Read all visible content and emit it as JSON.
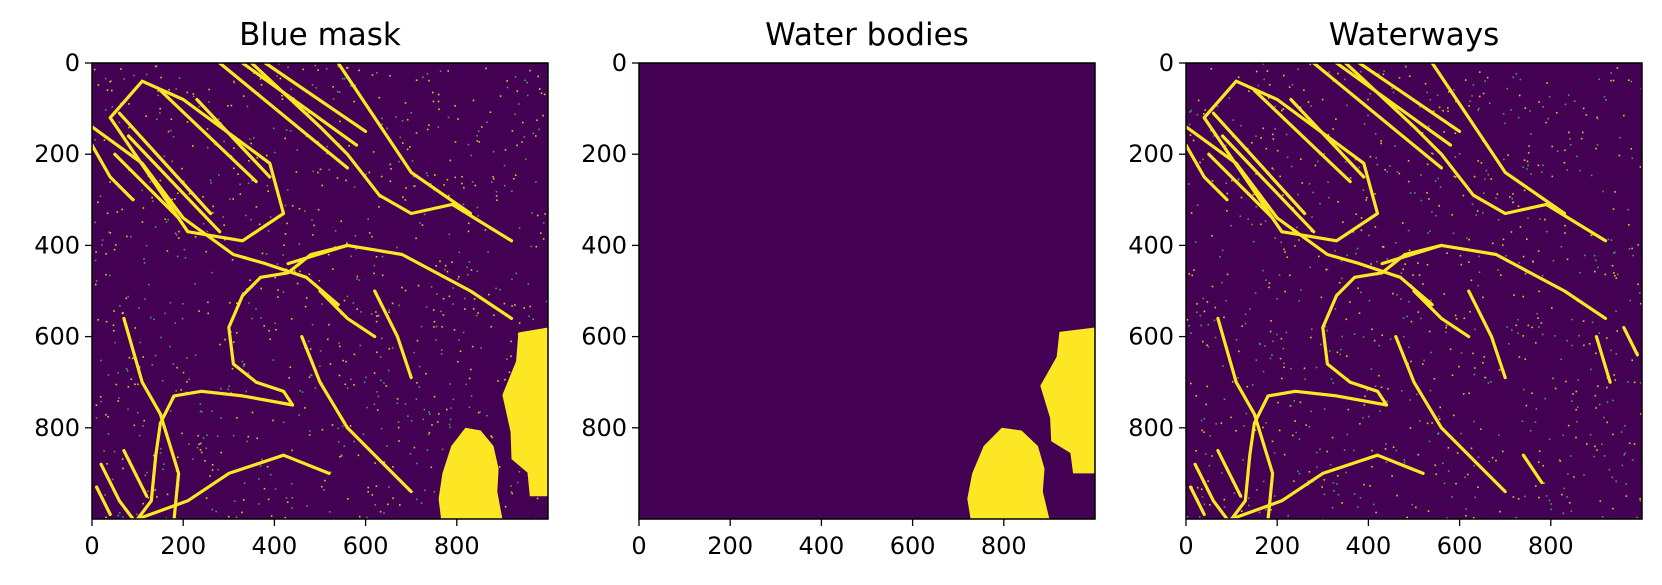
{
  "colors": {
    "background": "#440154",
    "mask": "#fde725",
    "speckle": "#3fbc73",
    "frame": "#000000"
  },
  "chart_data": [
    {
      "type": "heatmap",
      "title": "Blue mask",
      "xlim": [
        0,
        1000
      ],
      "ylim": [
        1000,
        0
      ],
      "xticks": [
        0,
        200,
        400,
        600,
        800
      ],
      "yticks": [
        0,
        200,
        400,
        600,
        800
      ],
      "xtick_labels": [
        "0",
        "200",
        "400",
        "600",
        "800"
      ],
      "ytick_labels": [
        "0",
        "200",
        "400",
        "600",
        "800"
      ],
      "grid": false,
      "colormap": "viridis",
      "value_range": [
        0,
        1
      ],
      "lines": [
        [
          [
            110,
            40
          ],
          [
            40,
            120
          ],
          [
            210,
            370
          ],
          [
            330,
            390
          ],
          [
            420,
            330
          ],
          [
            390,
            220
          ],
          [
            200,
            80
          ],
          [
            110,
            40
          ]
        ],
        [
          [
            60,
            110
          ],
          [
            260,
            330
          ]
        ],
        [
          [
            80,
            160
          ],
          [
            280,
            370
          ]
        ],
        [
          [
            50,
            200
          ],
          [
            190,
            340
          ]
        ],
        [
          [
            150,
            60
          ],
          [
            360,
            260
          ]
        ],
        [
          [
            230,
            80
          ],
          [
            390,
            250
          ]
        ],
        [
          [
            350,
            0
          ],
          [
            500,
            140
          ],
          [
            560,
            200
          ],
          [
            630,
            290
          ],
          [
            700,
            330
          ],
          [
            790,
            310
          ],
          [
            920,
            390
          ]
        ],
        [
          [
            280,
            0
          ],
          [
            560,
            230
          ]
        ],
        [
          [
            330,
            0
          ],
          [
            580,
            180
          ]
        ],
        [
          [
            380,
            0
          ],
          [
            600,
            150
          ]
        ],
        [
          [
            0,
            140
          ],
          [
            110,
            220
          ],
          [
            200,
            340
          ],
          [
            310,
            420
          ],
          [
            380,
            440
          ],
          [
            470,
            470
          ],
          [
            540,
            530
          ]
        ],
        [
          [
            0,
            180
          ],
          [
            40,
            250
          ],
          [
            90,
            300
          ]
        ],
        [
          [
            540,
            0
          ],
          [
            620,
            120
          ],
          [
            700,
            240
          ],
          [
            830,
            330
          ]
        ],
        [
          [
            430,
            440
          ],
          [
            560,
            400
          ],
          [
            680,
            420
          ],
          [
            830,
            500
          ],
          [
            920,
            560
          ]
        ],
        [
          [
            560,
            400
          ],
          [
            480,
            420
          ],
          [
            430,
            460
          ],
          [
            370,
            470
          ],
          [
            330,
            510
          ],
          [
            300,
            580
          ],
          [
            310,
            660
          ],
          [
            360,
            700
          ],
          [
            420,
            720
          ],
          [
            440,
            750
          ],
          [
            330,
            730
          ],
          [
            240,
            720
          ],
          [
            180,
            730
          ],
          [
            150,
            790
          ],
          [
            140,
            860
          ],
          [
            130,
            960
          ],
          [
            100,
            1000
          ]
        ],
        [
          [
            70,
            560
          ],
          [
            110,
            700
          ],
          [
            150,
            770
          ],
          [
            190,
            900
          ],
          [
            180,
            1000
          ]
        ],
        [
          [
            100,
            1000
          ],
          [
            210,
            960
          ],
          [
            300,
            900
          ],
          [
            420,
            860
          ],
          [
            520,
            900
          ]
        ],
        [
          [
            460,
            600
          ],
          [
            500,
            700
          ],
          [
            560,
            800
          ],
          [
            640,
            880
          ],
          [
            700,
            940
          ]
        ],
        [
          [
            620,
            500
          ],
          [
            670,
            600
          ],
          [
            700,
            690
          ]
        ],
        [
          [
            20,
            880
          ],
          [
            60,
            960
          ],
          [
            90,
            1000
          ]
        ],
        [
          [
            10,
            930
          ],
          [
            40,
            990
          ]
        ],
        [
          [
            70,
            850
          ],
          [
            120,
            950
          ]
        ],
        [
          [
            500,
            500
          ],
          [
            560,
            560
          ],
          [
            620,
            600
          ]
        ]
      ],
      "blobs": [
        {
          "shape": "water-body-lower",
          "x": [
            760,
            900
          ],
          "y": [
            800,
            1000
          ],
          "value": 1
        },
        {
          "shape": "water-body-right-edge",
          "x": [
            900,
            1000
          ],
          "y": [
            580,
            950
          ],
          "value": 1
        }
      ]
    },
    {
      "type": "heatmap",
      "title": "Water bodies",
      "xlim": [
        0,
        1000
      ],
      "ylim": [
        1000,
        0
      ],
      "xticks": [
        0,
        200,
        400,
        600,
        800
      ],
      "yticks": [
        0,
        200,
        400,
        600,
        800
      ],
      "xtick_labels": [
        "0",
        "200",
        "400",
        "600",
        "800"
      ],
      "ytick_labels": [
        "0",
        "200",
        "400",
        "600",
        "800"
      ],
      "grid": false,
      "colormap": "viridis",
      "value_range": [
        0,
        1
      ],
      "lines": [],
      "blobs": [
        {
          "shape": "water-body-lower",
          "x": [
            720,
            900
          ],
          "y": [
            800,
            1000
          ],
          "value": 1
        },
        {
          "shape": "water-body-right-edge",
          "x": [
            880,
            1000
          ],
          "y": [
            580,
            900
          ],
          "value": 1
        }
      ]
    },
    {
      "type": "heatmap",
      "title": "Waterways",
      "xlim": [
        0,
        1000
      ],
      "ylim": [
        1000,
        0
      ],
      "xticks": [
        0,
        200,
        400,
        600,
        800
      ],
      "yticks": [
        0,
        200,
        400,
        600,
        800
      ],
      "xtick_labels": [
        "0",
        "200",
        "400",
        "600",
        "800"
      ],
      "ytick_labels": [
        "0",
        "200",
        "400",
        "600",
        "800"
      ],
      "grid": false,
      "colormap": "viridis",
      "value_range": [
        0,
        1
      ],
      "lines": [
        [
          [
            110,
            40
          ],
          [
            40,
            120
          ],
          [
            210,
            370
          ],
          [
            330,
            390
          ],
          [
            420,
            330
          ],
          [
            390,
            220
          ],
          [
            200,
            80
          ],
          [
            110,
            40
          ]
        ],
        [
          [
            60,
            110
          ],
          [
            260,
            330
          ]
        ],
        [
          [
            80,
            160
          ],
          [
            280,
            370
          ]
        ],
        [
          [
            50,
            200
          ],
          [
            190,
            340
          ]
        ],
        [
          [
            150,
            60
          ],
          [
            360,
            260
          ]
        ],
        [
          [
            230,
            80
          ],
          [
            390,
            250
          ]
        ],
        [
          [
            350,
            0
          ],
          [
            500,
            140
          ],
          [
            560,
            200
          ],
          [
            630,
            290
          ],
          [
            700,
            330
          ],
          [
            790,
            310
          ],
          [
            920,
            390
          ]
        ],
        [
          [
            280,
            0
          ],
          [
            560,
            230
          ]
        ],
        [
          [
            330,
            0
          ],
          [
            580,
            180
          ]
        ],
        [
          [
            380,
            0
          ],
          [
            600,
            150
          ]
        ],
        [
          [
            0,
            140
          ],
          [
            110,
            220
          ],
          [
            200,
            340
          ],
          [
            310,
            420
          ],
          [
            380,
            440
          ],
          [
            470,
            470
          ],
          [
            540,
            530
          ]
        ],
        [
          [
            0,
            180
          ],
          [
            40,
            250
          ],
          [
            90,
            300
          ]
        ],
        [
          [
            540,
            0
          ],
          [
            620,
            120
          ],
          [
            700,
            240
          ],
          [
            830,
            330
          ]
        ],
        [
          [
            430,
            440
          ],
          [
            560,
            400
          ],
          [
            680,
            420
          ],
          [
            830,
            500
          ],
          [
            920,
            560
          ]
        ],
        [
          [
            560,
            400
          ],
          [
            480,
            420
          ],
          [
            430,
            460
          ],
          [
            370,
            470
          ],
          [
            330,
            510
          ],
          [
            300,
            580
          ],
          [
            310,
            660
          ],
          [
            360,
            700
          ],
          [
            420,
            720
          ],
          [
            440,
            750
          ],
          [
            330,
            730
          ],
          [
            240,
            720
          ],
          [
            180,
            730
          ],
          [
            150,
            790
          ],
          [
            140,
            860
          ],
          [
            130,
            960
          ],
          [
            100,
            1000
          ]
        ],
        [
          [
            70,
            560
          ],
          [
            110,
            700
          ],
          [
            150,
            770
          ],
          [
            190,
            900
          ],
          [
            180,
            1000
          ]
        ],
        [
          [
            100,
            1000
          ],
          [
            210,
            960
          ],
          [
            300,
            900
          ],
          [
            420,
            860
          ],
          [
            520,
            900
          ]
        ],
        [
          [
            460,
            600
          ],
          [
            500,
            700
          ],
          [
            560,
            800
          ],
          [
            640,
            880
          ],
          [
            700,
            940
          ]
        ],
        [
          [
            620,
            500
          ],
          [
            670,
            600
          ],
          [
            700,
            690
          ]
        ],
        [
          [
            20,
            880
          ],
          [
            60,
            960
          ],
          [
            90,
            1000
          ]
        ],
        [
          [
            10,
            930
          ],
          [
            40,
            990
          ]
        ],
        [
          [
            70,
            850
          ],
          [
            120,
            950
          ]
        ],
        [
          [
            500,
            500
          ],
          [
            560,
            560
          ],
          [
            620,
            600
          ]
        ],
        [
          [
            740,
            860
          ],
          [
            780,
            920
          ]
        ],
        [
          [
            900,
            600
          ],
          [
            930,
            700
          ]
        ],
        [
          [
            960,
            580
          ],
          [
            990,
            640
          ]
        ]
      ],
      "blobs": []
    }
  ]
}
